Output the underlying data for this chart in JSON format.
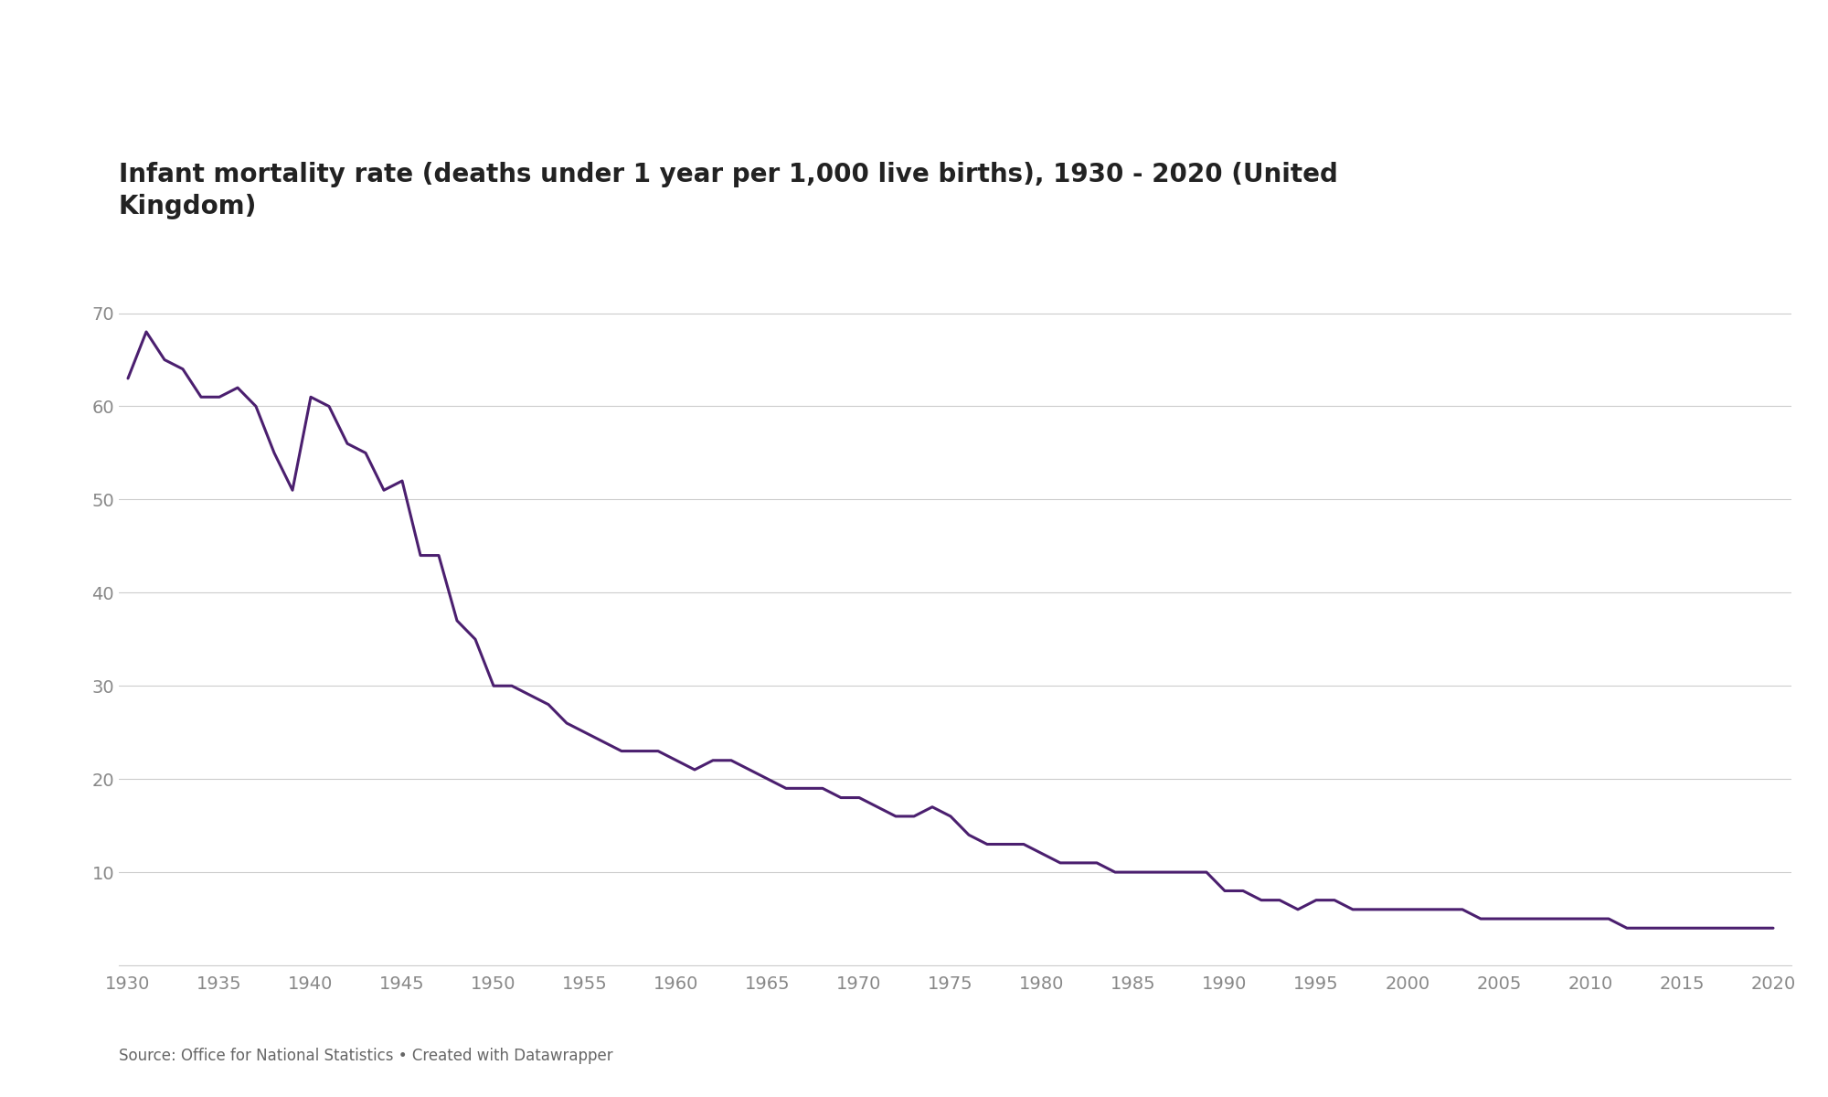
{
  "title": "Infant mortality rate (deaths under 1 year per 1,000 live births), 1930 - 2020 (United\nKingdom)",
  "source_text": "Source: Office for National Statistics • Created with Datawrapper",
  "line_color": "#4b1f6f",
  "background_color": "#ffffff",
  "grid_color": "#cccccc",
  "tick_label_color": "#888888",
  "title_color": "#222222",
  "ylim": [
    0,
    73
  ],
  "yticks": [
    0,
    10,
    20,
    30,
    40,
    50,
    60,
    70
  ],
  "xticks": [
    1930,
    1935,
    1940,
    1945,
    1950,
    1955,
    1960,
    1965,
    1970,
    1975,
    1980,
    1985,
    1990,
    1995,
    2000,
    2005,
    2010,
    2015,
    2020
  ],
  "line_width": 2.2,
  "years": [
    1930,
    1931,
    1932,
    1933,
    1934,
    1935,
    1936,
    1937,
    1938,
    1939,
    1940,
    1941,
    1942,
    1943,
    1944,
    1945,
    1946,
    1947,
    1948,
    1949,
    1950,
    1951,
    1952,
    1953,
    1954,
    1955,
    1956,
    1957,
    1958,
    1959,
    1960,
    1961,
    1962,
    1963,
    1964,
    1965,
    1966,
    1967,
    1968,
    1969,
    1970,
    1971,
    1972,
    1973,
    1974,
    1975,
    1976,
    1977,
    1978,
    1979,
    1980,
    1981,
    1982,
    1983,
    1984,
    1985,
    1986,
    1987,
    1988,
    1989,
    1990,
    1991,
    1992,
    1993,
    1994,
    1995,
    1996,
    1997,
    1998,
    1999,
    2000,
    2001,
    2002,
    2003,
    2004,
    2005,
    2006,
    2007,
    2008,
    2009,
    2010,
    2011,
    2012,
    2013,
    2014,
    2015,
    2016,
    2017,
    2018,
    2019,
    2020
  ],
  "values": [
    63,
    68,
    65,
    64,
    61,
    61,
    62,
    60,
    55,
    51,
    61,
    60,
    56,
    55,
    51,
    52,
    44,
    44,
    37,
    35,
    30,
    30,
    29,
    28,
    26,
    25,
    24,
    23,
    23,
    23,
    22,
    21,
    22,
    22,
    21,
    20,
    19,
    19,
    19,
    18,
    18,
    17,
    16,
    16,
    17,
    16,
    14,
    13,
    13,
    13,
    12,
    11,
    11,
    11,
    10,
    10,
    10,
    10,
    10,
    10,
    8,
    8,
    7,
    7,
    6,
    7,
    7,
    6,
    6,
    6,
    6,
    6,
    6,
    6,
    5,
    5,
    5,
    5,
    5,
    5,
    5,
    5,
    4,
    4,
    4,
    4,
    4,
    4,
    4,
    4,
    4
  ],
  "title_fontsize": 20,
  "tick_fontsize": 14,
  "source_fontsize": 12
}
